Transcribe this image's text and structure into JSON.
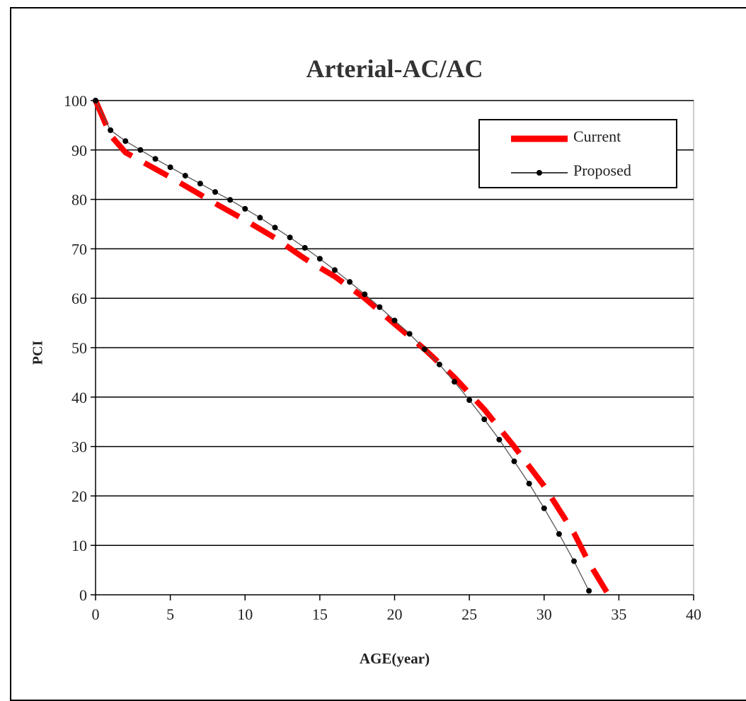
{
  "chart_data": {
    "type": "line",
    "title": "Arterial-AC/AC",
    "xlabel": "AGE(year)",
    "ylabel": "PCI",
    "xlim": [
      0,
      40
    ],
    "ylim": [
      0,
      100
    ],
    "xticks": [
      0,
      5,
      10,
      15,
      20,
      25,
      30,
      35,
      40
    ],
    "yticks": [
      0,
      10,
      20,
      30,
      40,
      50,
      60,
      70,
      80,
      90,
      100
    ],
    "grid": "horizontal",
    "legend_position": "top-right",
    "series": [
      {
        "name": "Current",
        "style": "dashed",
        "color": "#ff0000",
        "x": [
          0,
          1,
          2,
          5,
          8,
          10,
          12,
          14,
          16,
          18,
          20,
          22,
          24,
          26,
          28,
          30,
          32,
          33,
          34.3
        ],
        "y": [
          100,
          93,
          89.5,
          84.5,
          79.2,
          75.8,
          72.2,
          68,
          64.4,
          60,
          54.8,
          49.7,
          44,
          37.5,
          30,
          22,
          12.5,
          6.5,
          0
        ]
      },
      {
        "name": "Proposed",
        "style": "solid-with-markers",
        "color": "#000000",
        "x": [
          0,
          1,
          2,
          3,
          4,
          5,
          6,
          7,
          8,
          9,
          10,
          11,
          12,
          13,
          14,
          15,
          16,
          17,
          18,
          19,
          20,
          21,
          22,
          23,
          24,
          25,
          26,
          27,
          28,
          29,
          30,
          31,
          32,
          33
        ],
        "y": [
          100,
          94,
          91.8,
          90,
          88.2,
          86.5,
          84.8,
          83.2,
          81.5,
          79.9,
          78.1,
          76.3,
          74.3,
          72.3,
          70.2,
          68,
          65.7,
          63.3,
          60.8,
          58.2,
          55.5,
          52.8,
          49.7,
          46.6,
          43.1,
          39.4,
          35.5,
          31.4,
          27,
          22.5,
          17.5,
          12.3,
          6.8,
          0.8
        ]
      }
    ]
  }
}
